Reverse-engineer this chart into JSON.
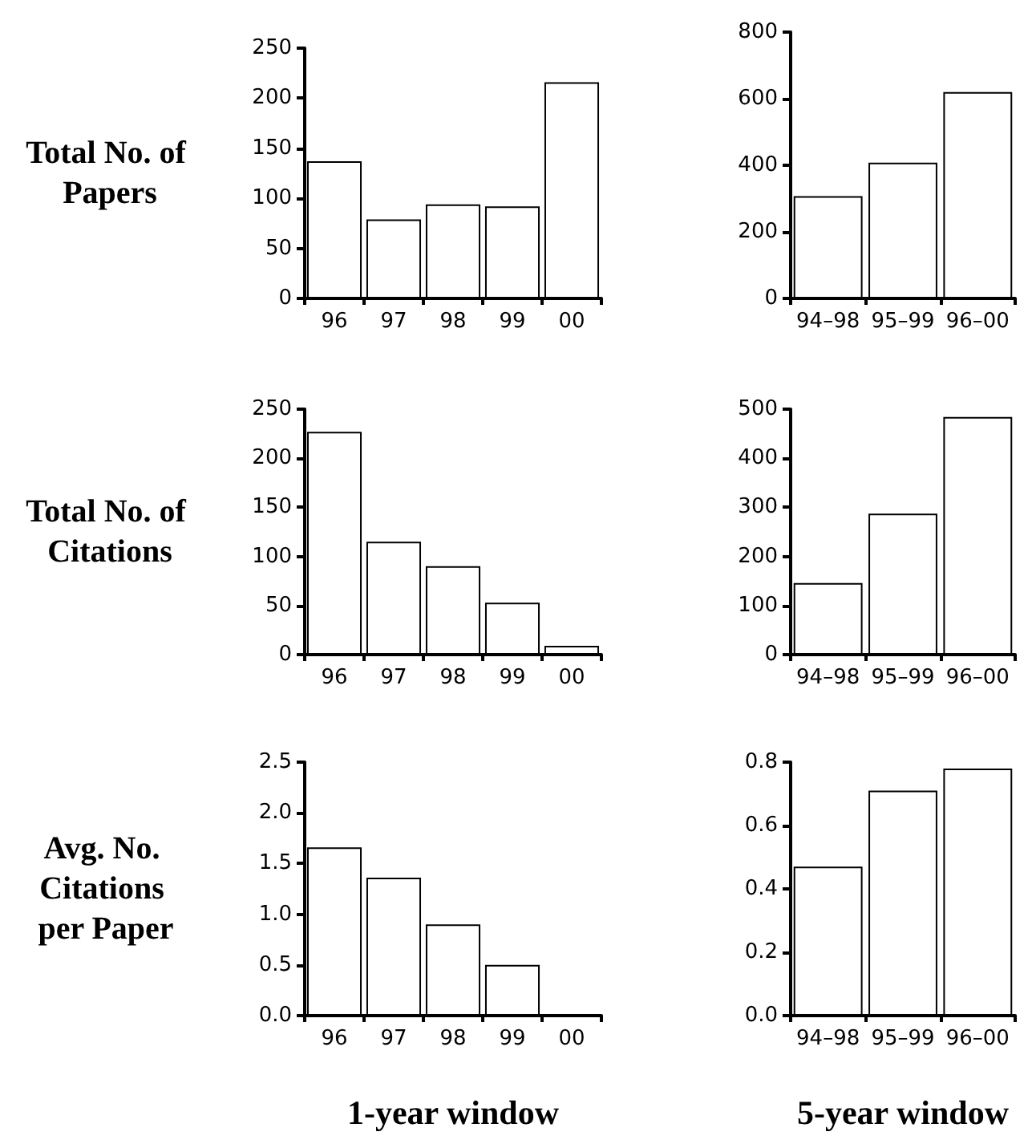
{
  "chart_data": [
    {
      "type": "bar",
      "ylabel": "Total No. of Papers",
      "categories": [
        "96",
        "97",
        "98",
        "99",
        "00"
      ],
      "values": [
        137,
        79,
        94,
        92,
        216
      ],
      "color": "#ffffff",
      "ylim": [
        0,
        250
      ],
      "yticks": [
        0,
        50,
        100,
        150,
        200,
        250
      ],
      "grid": false
    },
    {
      "type": "bar",
      "categories": [
        "94–98",
        "95–99",
        "96–00"
      ],
      "values": [
        307,
        408,
        620
      ],
      "color": "#ffffff",
      "ylim": [
        0,
        800
      ],
      "yticks": [
        0,
        200,
        400,
        600,
        800
      ],
      "grid": false
    },
    {
      "type": "bar",
      "ylabel": "Total No. of Citations",
      "categories": [
        "96",
        "97",
        "98",
        "99",
        "00"
      ],
      "values": [
        227,
        115,
        90,
        53,
        9
      ],
      "color": "#ffffff",
      "ylim": [
        0,
        250
      ],
      "yticks": [
        0,
        50,
        100,
        150,
        200,
        250
      ],
      "grid": false
    },
    {
      "type": "bar",
      "categories": [
        "94–98",
        "95–99",
        "96–00"
      ],
      "values": [
        146,
        287,
        484
      ],
      "color": "#ffffff",
      "ylim": [
        0,
        500
      ],
      "yticks": [
        0,
        100,
        200,
        300,
        400,
        500
      ],
      "grid": false
    },
    {
      "type": "bar",
      "ylabel": "Avg. No. Citations per Paper",
      "xlabel": "1-year window",
      "categories": [
        "96",
        "97",
        "98",
        "99",
        "00"
      ],
      "values": [
        1.66,
        1.36,
        0.9,
        0.5,
        null
      ],
      "color": "#ffffff",
      "ylim": [
        0,
        2.5
      ],
      "yticks": [
        {
          "value": 0,
          "label": "0.0"
        },
        {
          "value": 0.5,
          "label": "0.5"
        },
        {
          "value": 1,
          "label": "1.0"
        },
        {
          "value": 1.5,
          "label": "1.5"
        },
        {
          "value": 2,
          "label": "2.0"
        },
        {
          "value": 2.5,
          "label": "2.5"
        }
      ],
      "grid": false
    },
    {
      "type": "bar",
      "xlabel": "5-year window",
      "categories": [
        "94–98",
        "95–99",
        "96–00"
      ],
      "values": [
        0.47,
        0.71,
        0.78
      ],
      "color": "#ffffff",
      "ylim": [
        0,
        0.8
      ],
      "yticks": [
        {
          "value": 0,
          "label": "0.0"
        },
        0.2,
        0.4,
        0.6,
        0.8
      ],
      "grid": false
    }
  ]
}
